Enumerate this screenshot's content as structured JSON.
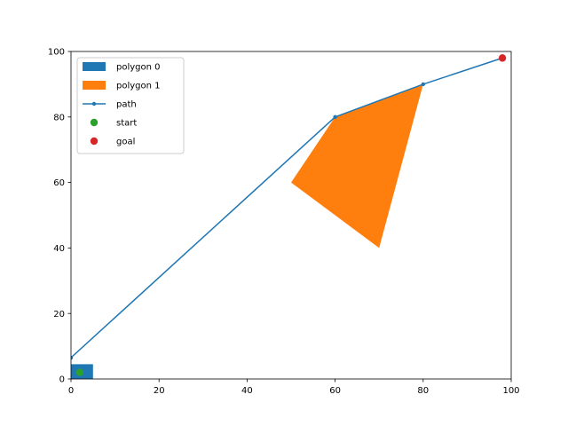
{
  "chart_data": {
    "type": "scatter",
    "title": "",
    "xlabel": "",
    "ylabel": "",
    "xlim": [
      0,
      100
    ],
    "ylim": [
      0,
      100
    ],
    "x_ticks": [
      0,
      20,
      40,
      60,
      80,
      100
    ],
    "y_ticks": [
      0,
      20,
      40,
      60,
      80,
      100
    ],
    "grid": false,
    "legend_position": "top-left",
    "polygons": [
      {
        "name": "polygon 0",
        "color": "#1f77b4",
        "points": [
          [
            0,
            0
          ],
          [
            5,
            0
          ],
          [
            5,
            4.5
          ],
          [
            0,
            4.5
          ]
        ]
      },
      {
        "name": "polygon 1",
        "color": "#ff7f0e",
        "points": [
          [
            60,
            80
          ],
          [
            80,
            90
          ],
          [
            70,
            40
          ],
          [
            50,
            60
          ]
        ]
      }
    ],
    "path": {
      "name": "path",
      "color": "#1f77b4",
      "points": [
        [
          0,
          6.5
        ],
        [
          60,
          80
        ],
        [
          80,
          90
        ],
        [
          98,
          98
        ]
      ]
    },
    "markers": [
      {
        "name": "start",
        "color": "#2ca02c",
        "point": [
          2,
          2
        ]
      },
      {
        "name": "goal",
        "color": "#d62728",
        "point": [
          98,
          98
        ]
      }
    ]
  }
}
